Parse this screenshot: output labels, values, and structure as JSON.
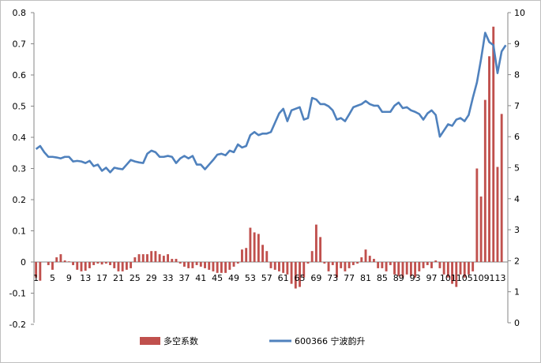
{
  "chart_data": {
    "type": "bar+line",
    "title": "",
    "x": [
      1,
      2,
      3,
      4,
      5,
      6,
      7,
      8,
      9,
      10,
      11,
      12,
      13,
      14,
      15,
      16,
      17,
      18,
      19,
      20,
      21,
      22,
      23,
      24,
      25,
      26,
      27,
      28,
      29,
      30,
      31,
      32,
      33,
      34,
      35,
      36,
      37,
      38,
      39,
      40,
      41,
      42,
      43,
      44,
      45,
      46,
      47,
      48,
      49,
      50,
      51,
      52,
      53,
      54,
      55,
      56,
      57,
      58,
      59,
      60,
      61,
      62,
      63,
      64,
      65,
      66,
      67,
      68,
      69,
      70,
      71,
      72,
      73,
      74,
      75,
      76,
      77,
      78,
      79,
      80,
      81,
      82,
      83,
      84,
      85,
      86,
      87,
      88,
      89,
      90,
      91,
      92,
      93,
      94,
      95,
      96,
      97,
      98,
      99,
      100,
      101,
      102,
      103,
      104,
      105,
      106,
      107,
      108,
      109,
      110,
      111,
      112,
      113,
      114,
      115
    ],
    "x_tick_labels": [
      "1",
      "5",
      "9",
      "13",
      "17",
      "21",
      "25",
      "29",
      "33",
      "37",
      "41",
      "45",
      "49",
      "53",
      "57",
      "61",
      "65",
      "69",
      "73",
      "77",
      "81",
      "85",
      "89",
      "93",
      "97",
      "101",
      "105",
      "109",
      "113"
    ],
    "x_tick_positions": [
      1,
      5,
      9,
      13,
      17,
      21,
      25,
      29,
      33,
      37,
      41,
      45,
      49,
      53,
      57,
      61,
      65,
      69,
      73,
      77,
      81,
      85,
      89,
      93,
      97,
      101,
      105,
      109,
      113
    ],
    "left_axis": {
      "ylim": [
        -0.2,
        0.8
      ],
      "ticks": [
        "-0.2",
        "-0.1",
        "0",
        "0.1",
        "0.2",
        "0.3",
        "0.4",
        "0.5",
        "0.6",
        "0.7",
        "0.8"
      ]
    },
    "right_axis": {
      "ylim": [
        0,
        10
      ],
      "ticks": [
        "0",
        "1",
        "2",
        "3",
        "4",
        "5",
        "6",
        "7",
        "8",
        "9",
        "10"
      ]
    },
    "grid": false,
    "legend_position": "bottom",
    "series": [
      {
        "name": "多空系数",
        "type": "bar",
        "axis": "left",
        "color": "#c0504d",
        "values": [
          -0.05,
          -0.06,
          0,
          -0.01,
          -0.025,
          0.015,
          0.025,
          0.005,
          0.002,
          -0.01,
          -0.025,
          -0.03,
          -0.028,
          -0.02,
          -0.01,
          -0.005,
          -0.008,
          -0.005,
          -0.01,
          -0.02,
          -0.03,
          -0.03,
          -0.025,
          -0.02,
          0.015,
          0.025,
          0.025,
          0.025,
          0.035,
          0.035,
          0.025,
          0.02,
          0.025,
          0.01,
          0.01,
          -0.005,
          -0.015,
          -0.02,
          -0.02,
          -0.01,
          -0.015,
          -0.02,
          -0.025,
          -0.03,
          -0.035,
          -0.035,
          -0.035,
          -0.025,
          -0.015,
          -0.005,
          0.04,
          0.045,
          0.11,
          0.095,
          0.09,
          0.055,
          0.035,
          -0.02,
          -0.025,
          -0.03,
          -0.035,
          -0.04,
          -0.07,
          -0.085,
          -0.08,
          -0.05,
          -0.005,
          0.035,
          0.12,
          0.08,
          -0.005,
          -0.03,
          -0.01,
          -0.05,
          -0.02,
          -0.03,
          -0.02,
          -0.01,
          -0.005,
          0.015,
          0.04,
          0.02,
          0.01,
          -0.02,
          -0.02,
          -0.03,
          -0.01,
          -0.04,
          -0.045,
          -0.05,
          -0.04,
          -0.045,
          -0.05,
          -0.03,
          -0.02,
          -0.01,
          -0.02,
          0.005,
          -0.02,
          -0.04,
          -0.05,
          -0.07,
          -0.08,
          -0.04,
          -0.05,
          -0.04,
          -0.03,
          0.3,
          0.21,
          0.52,
          0.66,
          0.755,
          0.305,
          0.475,
          0
        ]
      },
      {
        "name": "600366 宁波韵升",
        "type": "line",
        "axis": "right",
        "color": "#4f81bd",
        "values": [
          5.6,
          5.7,
          5.5,
          5.35,
          5.35,
          5.33,
          5.3,
          5.35,
          5.35,
          5.2,
          5.22,
          5.2,
          5.15,
          5.22,
          5.05,
          5.1,
          4.9,
          5.0,
          4.85,
          5.0,
          4.97,
          4.95,
          5.1,
          5.25,
          5.2,
          5.17,
          5.15,
          5.45,
          5.55,
          5.5,
          5.35,
          5.35,
          5.38,
          5.35,
          5.15,
          5.3,
          5.38,
          5.3,
          5.38,
          5.1,
          5.1,
          4.95,
          5.1,
          5.25,
          5.42,
          5.45,
          5.4,
          5.55,
          5.5,
          5.75,
          5.65,
          5.7,
          6.05,
          6.15,
          6.05,
          6.1,
          6.1,
          6.15,
          6.45,
          6.75,
          6.9,
          6.5,
          6.85,
          6.9,
          6.95,
          6.55,
          6.6,
          7.25,
          7.2,
          7.05,
          7.05,
          6.98,
          6.85,
          6.55,
          6.6,
          6.5,
          6.72,
          6.95,
          7.0,
          7.05,
          7.15,
          7.05,
          7.0,
          7.0,
          6.8,
          6.8,
          6.8,
          7.0,
          7.1,
          6.92,
          6.95,
          6.85,
          6.8,
          6.73,
          6.55,
          6.75,
          6.85,
          6.7,
          6.0,
          6.2,
          6.4,
          6.35,
          6.55,
          6.6,
          6.5,
          6.7,
          7.25,
          7.75,
          8.5,
          9.35,
          9.05,
          8.95,
          8.05,
          8.75,
          8.95
        ]
      }
    ]
  }
}
